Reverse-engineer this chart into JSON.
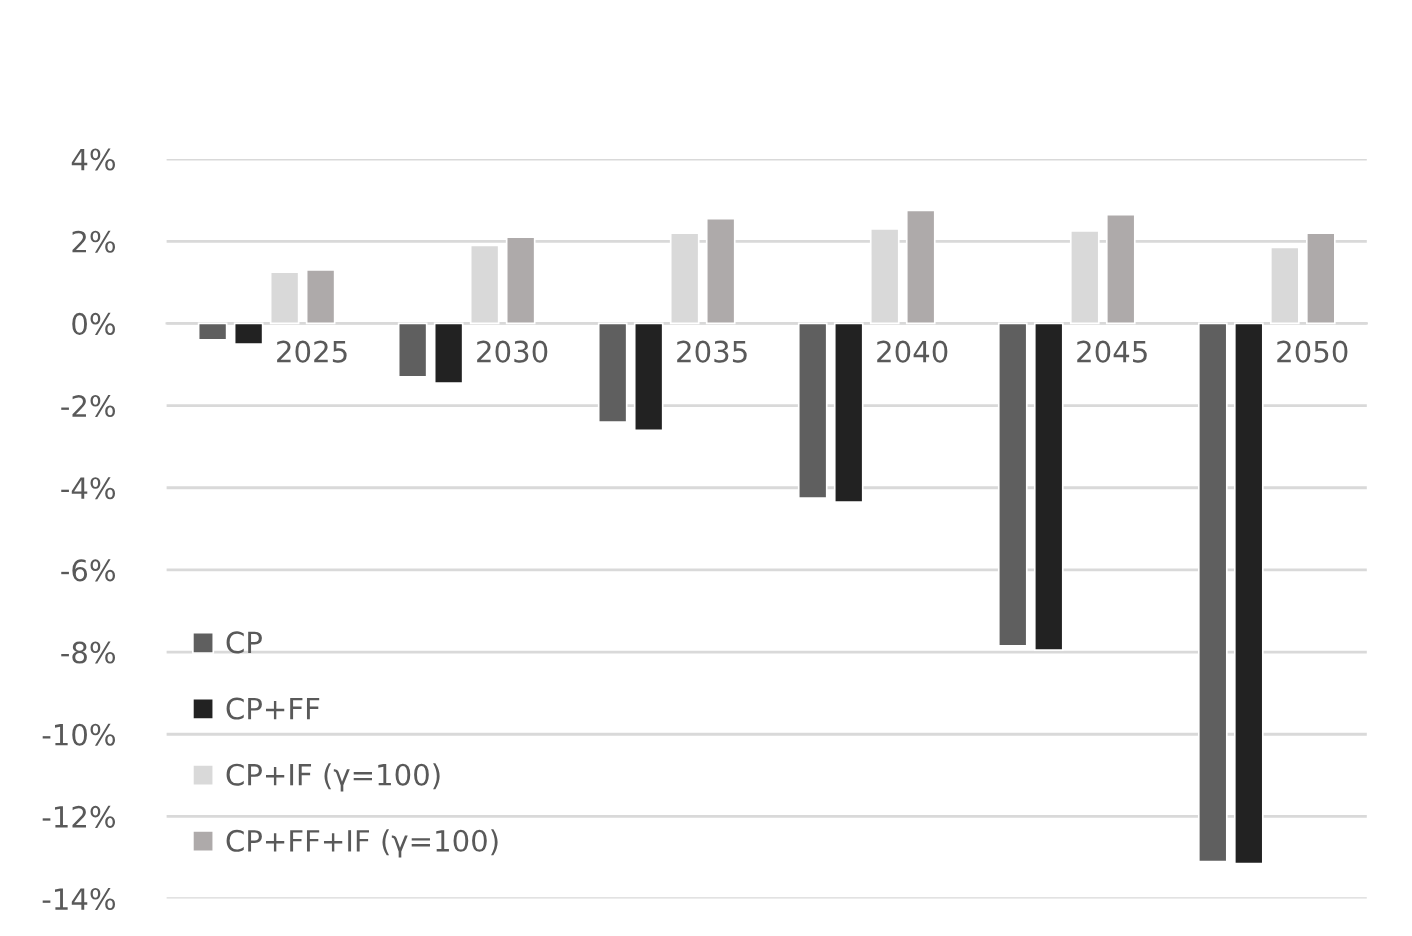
{
  "chart_data": {
    "type": "bar",
    "categories": [
      "2025",
      "2030",
      "2035",
      "2040",
      "2045",
      "2050"
    ],
    "series": [
      {
        "name": "CP",
        "color": "#5f5f5f",
        "values": [
          -0.4,
          -1.3,
          -2.4,
          -4.25,
          -7.85,
          -13.1
        ]
      },
      {
        "name": "CP+FF",
        "color": "#222222",
        "values": [
          -0.5,
          -1.45,
          -2.6,
          -4.35,
          -7.95,
          -13.15
        ]
      },
      {
        "name": "CP+IF (γ=100)",
        "color": "#d9d9d9",
        "values": [
          1.25,
          1.9,
          2.2,
          2.3,
          2.25,
          1.85
        ]
      },
      {
        "name": "CP+FF+IF (γ=100)",
        "color": "#aeaaaa",
        "values": [
          1.3,
          2.1,
          2.55,
          2.75,
          2.65,
          2.2
        ]
      }
    ],
    "ylim": [
      -14,
      4
    ],
    "yticks": [
      {
        "value": -14,
        "label": "-14%"
      },
      {
        "value": -12,
        "label": "-12%"
      },
      {
        "value": -10,
        "label": "-10%"
      },
      {
        "value": -8,
        "label": "-8%"
      },
      {
        "value": -6,
        "label": "-6%"
      },
      {
        "value": -4,
        "label": "-4%"
      },
      {
        "value": -2,
        "label": "-2%"
      },
      {
        "value": 0,
        "label": "0%"
      },
      {
        "value": 2,
        "label": "2%"
      },
      {
        "value": 4,
        "label": "4%"
      }
    ],
    "grid": "y",
    "legend": "bottom left"
  }
}
